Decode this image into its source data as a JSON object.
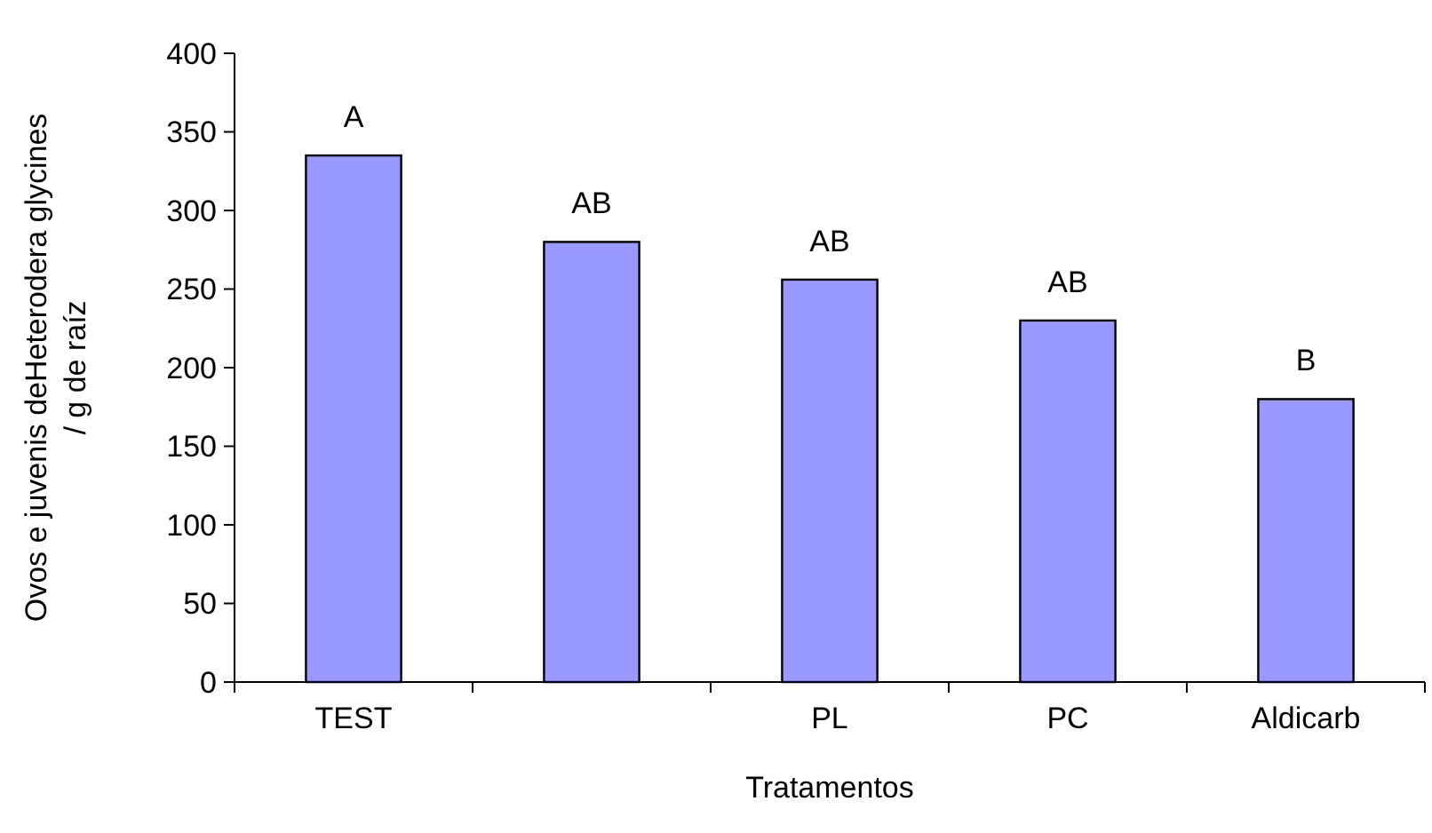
{
  "chart_data": {
    "type": "bar",
    "xlabel": "Tratamentos",
    "ylabel": "Ovos e juvenis deHeterodera glycines / g de raíz",
    "categories": [
      "TEST",
      null,
      "PL",
      "PC",
      "Aldicarb"
    ],
    "values": [
      335,
      280,
      256,
      230,
      180
    ],
    "color": "#9999ff",
    "ylim": [
      0,
      400
    ],
    "yticks": [
      0,
      50,
      100,
      150,
      200,
      250,
      300,
      350,
      400
    ],
    "grid": false,
    "annotations": [
      "A",
      "AB",
      "AB",
      "AB",
      "B"
    ]
  }
}
